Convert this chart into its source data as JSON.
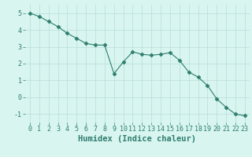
{
  "x": [
    0,
    1,
    2,
    3,
    4,
    5,
    6,
    7,
    8,
    9,
    10,
    11,
    12,
    13,
    14,
    15,
    16,
    17,
    18,
    19,
    20,
    21,
    22,
    23
  ],
  "y": [
    5.0,
    4.8,
    4.5,
    4.2,
    3.8,
    3.5,
    3.2,
    3.1,
    3.1,
    1.4,
    2.1,
    2.7,
    2.55,
    2.5,
    2.55,
    2.65,
    2.2,
    1.5,
    1.2,
    0.7,
    -0.1,
    -0.6,
    -1.0,
    -1.1
  ],
  "line_color": "#2e7d6e",
  "marker": "D",
  "marker_size": 2.5,
  "bg_color": "#d8f5f0",
  "grid_color": "#b8ddd8",
  "xlabel": "Humidex (Indice chaleur)",
  "xlabel_fontsize": 7.5,
  "tick_fontsize": 6,
  "ylim": [
    -1.5,
    5.5
  ],
  "xlim": [
    -0.5,
    23.5
  ],
  "yticks": [
    -1,
    0,
    1,
    2,
    3,
    4,
    5
  ],
  "xticks": [
    0,
    1,
    2,
    3,
    4,
    5,
    6,
    7,
    8,
    9,
    10,
    11,
    12,
    13,
    14,
    15,
    16,
    17,
    18,
    19,
    20,
    21,
    22,
    23
  ]
}
